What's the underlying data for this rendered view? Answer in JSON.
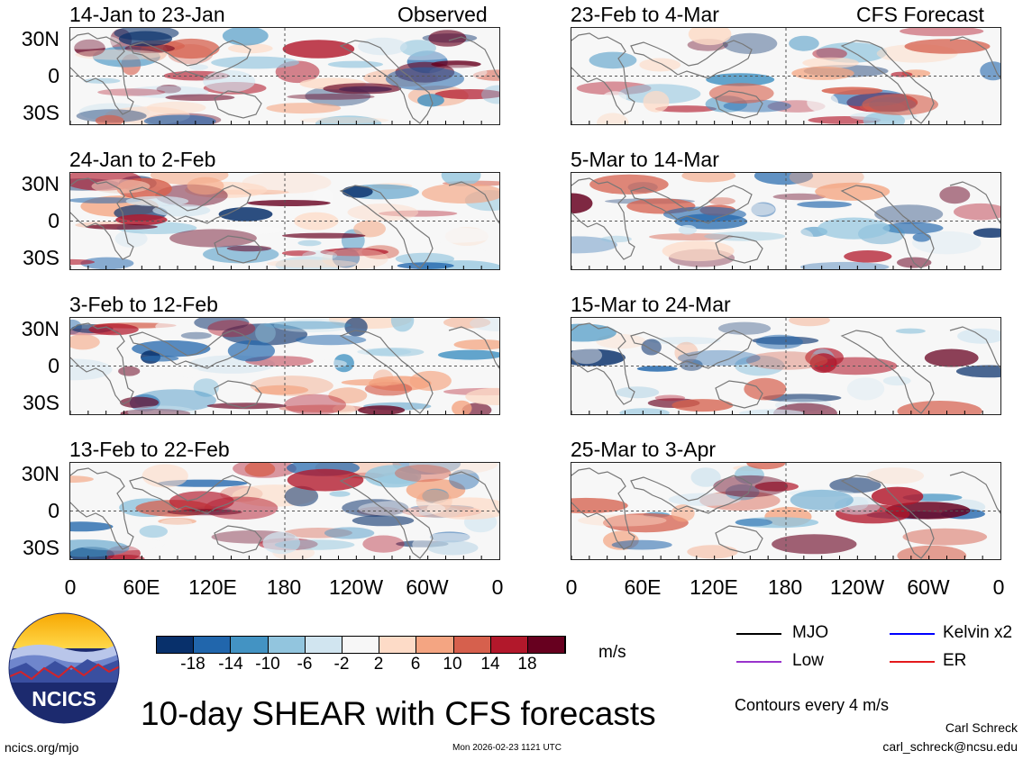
{
  "main_title": "10-day SHEAR with CFS forecasts",
  "observed_label": "Observed",
  "forecast_label": "CFS Forecast",
  "lat_labels": [
    "30N",
    "0",
    "30S"
  ],
  "lon_labels": [
    "0",
    "60E",
    "120E",
    "180",
    "120W",
    "60W",
    "0"
  ],
  "panels": [
    {
      "title": "14-Jan to 23-Jan",
      "column": "observed"
    },
    {
      "title": "24-Jan to 2-Feb",
      "column": "observed"
    },
    {
      "title": "3-Feb to 12-Feb",
      "column": "observed"
    },
    {
      "title": "13-Feb to 22-Feb",
      "column": "observed"
    },
    {
      "title": "23-Feb to 4-Mar",
      "column": "forecast"
    },
    {
      "title": "5-Mar to 14-Mar",
      "column": "forecast"
    },
    {
      "title": "15-Mar to 24-Mar",
      "column": "forecast"
    },
    {
      "title": "25-Mar to 3-Apr",
      "column": "forecast"
    }
  ],
  "colorbar": {
    "labels": [
      "-18",
      "-14",
      "-10",
      "-6",
      "-2",
      "2",
      "6",
      "10",
      "14",
      "18"
    ],
    "colors": [
      "#08306b",
      "#2166ac",
      "#4393c3",
      "#92c5de",
      "#d1e5f0",
      "#f7f7f7",
      "#fddbc7",
      "#f4a582",
      "#d6604d",
      "#b2182b",
      "#67001f"
    ],
    "unit": "m/s"
  },
  "legend": {
    "items": [
      {
        "label": "MJO",
        "color": "#000000"
      },
      {
        "label": "Kelvin x2",
        "color": "#0000ff"
      },
      {
        "label": "Low",
        "color": "#9933cc"
      },
      {
        "label": "ER",
        "color": "#e41a1c"
      }
    ],
    "contour_note": "Contours every 4 m/s"
  },
  "logo_text": "NCICS",
  "footer": {
    "url": "ncics.org/mjo",
    "timestamp": "Mon 2026-02-23 1121 UTC",
    "author": "Carl Schreck",
    "email": "carl_schreck@ncsu.edu"
  }
}
